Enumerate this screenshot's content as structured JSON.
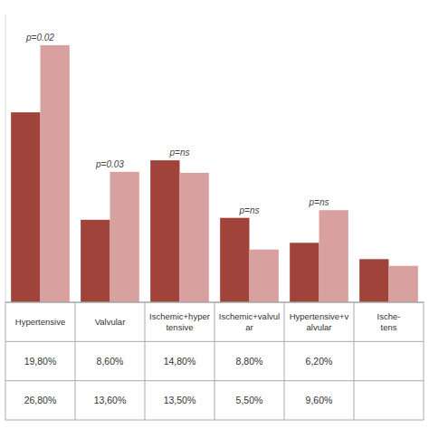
{
  "chart_data": {
    "type": "bar",
    "categories": [
      "Hypertensive",
      "Valvular",
      "Ischemic+hyper\ntensive",
      "Ischemic+valvul\nar",
      "Hypertensive+v\nalvular",
      "Ische-\ntens"
    ],
    "series": [
      {
        "color": "#a0433a",
        "values": [
          19.8,
          8.6,
          14.8,
          8.8,
          6.2,
          4.5
        ],
        "value_labels": [
          "19,80%",
          "8,60%",
          "14,80%",
          "8,80%",
          "6,20%",
          null
        ]
      },
      {
        "color": "#d9a0a0",
        "values": [
          26.8,
          13.6,
          13.5,
          5.5,
          9.6,
          3.8
        ],
        "value_labels": [
          "26,80%",
          "13,60%",
          "13,50%",
          "5,50%",
          "9,60%",
          null
        ]
      }
    ],
    "annotations": [
      "p=0.02",
      "p=0.03",
      "p=ns",
      "p=ns",
      "p=ns",
      null
    ],
    "ylim": [
      0,
      30
    ],
    "grid": false,
    "tick_labels": false
  }
}
